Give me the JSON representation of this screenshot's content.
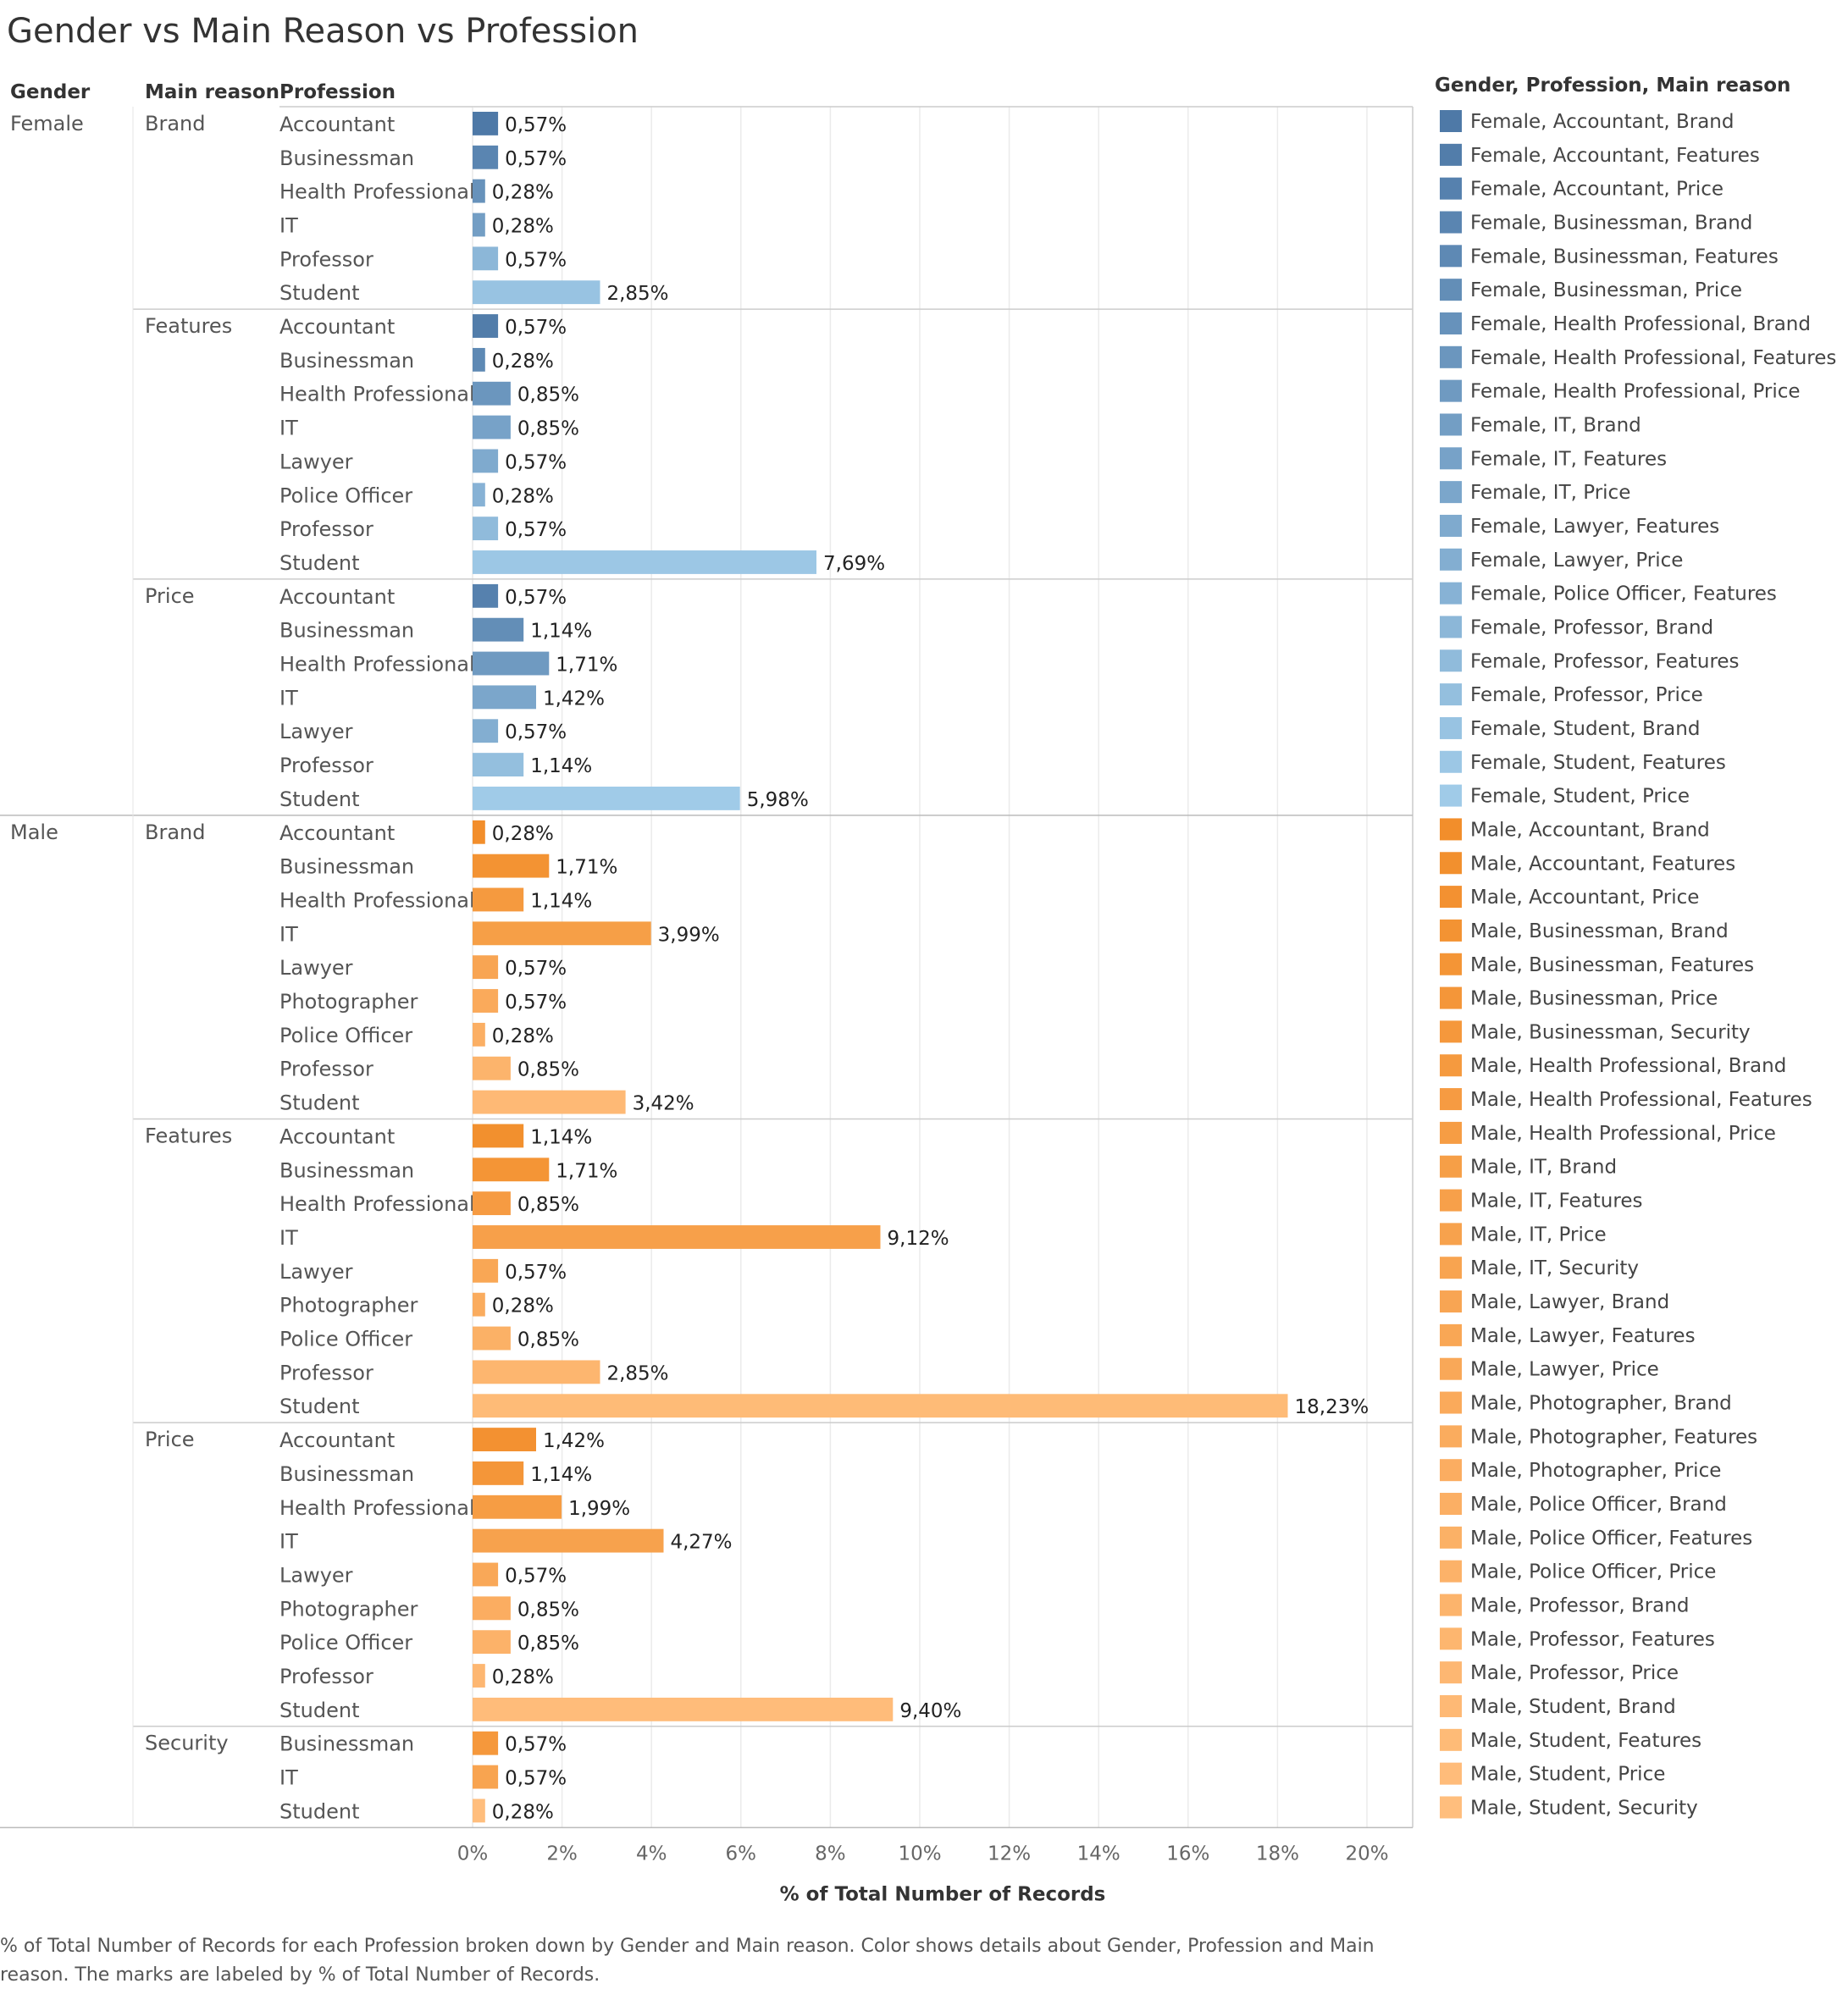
{
  "title": "Gender vs Main Reason vs Profession",
  "caption": "% of Total Number of Records for each Profession broken down by Gender and Main reason.  Color shows details about Gender, Profession and Main reason.  The marks are labeled by % of Total Number of Records.",
  "chart_data": {
    "type": "bar",
    "orientation": "horizontal",
    "title": "Gender vs Main Reason vs Profession",
    "row_headers": [
      "Gender",
      "Main reason",
      "Profession"
    ],
    "xlabel": "% of Total Number of Records",
    "xlim": [
      0,
      21
    ],
    "xticks": [
      "0%",
      "2%",
      "4%",
      "6%",
      "8%",
      "10%",
      "12%",
      "14%",
      "16%",
      "18%",
      "20%"
    ],
    "legend_title": "Gender, Profession, Main reason",
    "legend_position": "right",
    "colors": {
      "female_dark": "#4e79a7",
      "female_light": "#a0cbe8",
      "male_dark": "#f28e2b",
      "male_light": "#ffbe7d"
    },
    "groups": [
      {
        "gender": "Female",
        "reasons": [
          {
            "reason": "Brand",
            "rows": [
              {
                "profession": "Accountant",
                "value": 0.57,
                "label": "0,57%"
              },
              {
                "profession": "Businessman",
                "value": 0.57,
                "label": "0,57%"
              },
              {
                "profession": "Health Professional",
                "value": 0.28,
                "label": "0,28%"
              },
              {
                "profession": "IT",
                "value": 0.28,
                "label": "0,28%"
              },
              {
                "profession": "Professor",
                "value": 0.57,
                "label": "0,57%"
              },
              {
                "profession": "Student",
                "value": 2.85,
                "label": "2,85%"
              }
            ]
          },
          {
            "reason": "Features",
            "rows": [
              {
                "profession": "Accountant",
                "value": 0.57,
                "label": "0,57%"
              },
              {
                "profession": "Businessman",
                "value": 0.28,
                "label": "0,28%"
              },
              {
                "profession": "Health Professional",
                "value": 0.85,
                "label": "0,85%"
              },
              {
                "profession": "IT",
                "value": 0.85,
                "label": "0,85%"
              },
              {
                "profession": "Lawyer",
                "value": 0.57,
                "label": "0,57%"
              },
              {
                "profession": "Police Officer",
                "value": 0.28,
                "label": "0,28%"
              },
              {
                "profession": "Professor",
                "value": 0.57,
                "label": "0,57%"
              },
              {
                "profession": "Student",
                "value": 7.69,
                "label": "7,69%"
              }
            ]
          },
          {
            "reason": "Price",
            "rows": [
              {
                "profession": "Accountant",
                "value": 0.57,
                "label": "0,57%"
              },
              {
                "profession": "Businessman",
                "value": 1.14,
                "label": "1,14%"
              },
              {
                "profession": "Health Professional",
                "value": 1.71,
                "label": "1,71%"
              },
              {
                "profession": "IT",
                "value": 1.42,
                "label": "1,42%"
              },
              {
                "profession": "Lawyer",
                "value": 0.57,
                "label": "0,57%"
              },
              {
                "profession": "Professor",
                "value": 1.14,
                "label": "1,14%"
              },
              {
                "profession": "Student",
                "value": 5.98,
                "label": "5,98%"
              }
            ]
          }
        ]
      },
      {
        "gender": "Male",
        "reasons": [
          {
            "reason": "Brand",
            "rows": [
              {
                "profession": "Accountant",
                "value": 0.28,
                "label": "0,28%"
              },
              {
                "profession": "Businessman",
                "value": 1.71,
                "label": "1,71%"
              },
              {
                "profession": "Health Professional",
                "value": 1.14,
                "label": "1,14%"
              },
              {
                "profession": "IT",
                "value": 3.99,
                "label": "3,99%"
              },
              {
                "profession": "Lawyer",
                "value": 0.57,
                "label": "0,57%"
              },
              {
                "profession": "Photographer",
                "value": 0.57,
                "label": "0,57%"
              },
              {
                "profession": "Police Officer",
                "value": 0.28,
                "label": "0,28%"
              },
              {
                "profession": "Professor",
                "value": 0.85,
                "label": "0,85%"
              },
              {
                "profession": "Student",
                "value": 3.42,
                "label": "3,42%"
              }
            ]
          },
          {
            "reason": "Features",
            "rows": [
              {
                "profession": "Accountant",
                "value": 1.14,
                "label": "1,14%"
              },
              {
                "profession": "Businessman",
                "value": 1.71,
                "label": "1,71%"
              },
              {
                "profession": "Health Professional",
                "value": 0.85,
                "label": "0,85%"
              },
              {
                "profession": "IT",
                "value": 9.12,
                "label": "9,12%"
              },
              {
                "profession": "Lawyer",
                "value": 0.57,
                "label": "0,57%"
              },
              {
                "profession": "Photographer",
                "value": 0.28,
                "label": "0,28%"
              },
              {
                "profession": "Police Officer",
                "value": 0.85,
                "label": "0,85%"
              },
              {
                "profession": "Professor",
                "value": 2.85,
                "label": "2,85%"
              },
              {
                "profession": "Student",
                "value": 18.23,
                "label": "18,23%"
              }
            ]
          },
          {
            "reason": "Price",
            "rows": [
              {
                "profession": "Accountant",
                "value": 1.42,
                "label": "1,42%"
              },
              {
                "profession": "Businessman",
                "value": 1.14,
                "label": "1,14%"
              },
              {
                "profession": "Health Professional",
                "value": 1.99,
                "label": "1,99%"
              },
              {
                "profession": "IT",
                "value": 4.27,
                "label": "4,27%"
              },
              {
                "profession": "Lawyer",
                "value": 0.57,
                "label": "0,57%"
              },
              {
                "profession": "Photographer",
                "value": 0.85,
                "label": "0,85%"
              },
              {
                "profession": "Police Officer",
                "value": 0.85,
                "label": "0,85%"
              },
              {
                "profession": "Professor",
                "value": 0.28,
                "label": "0,28%"
              },
              {
                "profession": "Student",
                "value": 9.4,
                "label": "9,40%"
              }
            ]
          },
          {
            "reason": "Security",
            "rows": [
              {
                "profession": "Businessman",
                "value": 0.57,
                "label": "0,57%"
              },
              {
                "profession": "IT",
                "value": 0.57,
                "label": "0,57%"
              },
              {
                "profession": "Student",
                "value": 0.28,
                "label": "0,28%"
              }
            ]
          }
        ]
      }
    ],
    "legend_items": [
      "Female, Accountant, Brand",
      "Female, Accountant, Features",
      "Female, Accountant, Price",
      "Female, Businessman, Brand",
      "Female, Businessman, Features",
      "Female, Businessman, Price",
      "Female, Health Professional, Brand",
      "Female, Health Professional, Features",
      "Female, Health Professional, Price",
      "Female, IT, Brand",
      "Female, IT, Features",
      "Female, IT, Price",
      "Female, Lawyer, Features",
      "Female, Lawyer, Price",
      "Female, Police Officer, Features",
      "Female, Professor, Brand",
      "Female, Professor, Features",
      "Female, Professor, Price",
      "Female, Student, Brand",
      "Female, Student, Features",
      "Female, Student, Price",
      "Male, Accountant, Brand",
      "Male, Accountant, Features",
      "Male, Accountant, Price",
      "Male, Businessman, Brand",
      "Male, Businessman, Features",
      "Male, Businessman, Price",
      "Male, Businessman, Security",
      "Male, Health Professional, Brand",
      "Male, Health Professional, Features",
      "Male, Health Professional, Price",
      "Male, IT, Brand",
      "Male, IT, Features",
      "Male, IT, Price",
      "Male, IT, Security",
      "Male, Lawyer, Brand",
      "Male, Lawyer, Features",
      "Male, Lawyer, Price",
      "Male, Photographer, Brand",
      "Male, Photographer, Features",
      "Male, Photographer, Price",
      "Male, Police Officer, Brand",
      "Male, Police Officer, Features",
      "Male, Police Officer, Price",
      "Male, Professor, Brand",
      "Male, Professor, Features",
      "Male, Professor, Price",
      "Male, Student, Brand",
      "Male, Student, Features",
      "Male, Student, Price",
      "Male, Student, Security"
    ]
  }
}
